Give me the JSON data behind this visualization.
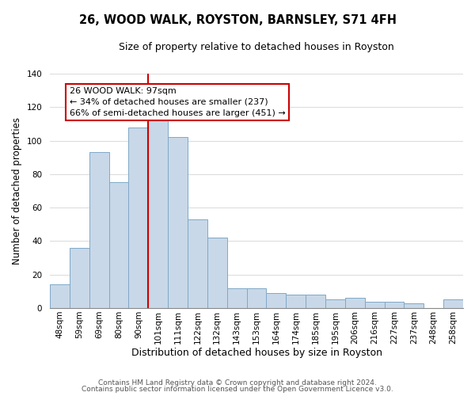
{
  "title": "26, WOOD WALK, ROYSTON, BARNSLEY, S71 4FH",
  "subtitle": "Size of property relative to detached houses in Royston",
  "xlabel": "Distribution of detached houses by size in Royston",
  "ylabel": "Number of detached properties",
  "bar_labels": [
    "48sqm",
    "59sqm",
    "69sqm",
    "80sqm",
    "90sqm",
    "101sqm",
    "111sqm",
    "122sqm",
    "132sqm",
    "143sqm",
    "153sqm",
    "164sqm",
    "174sqm",
    "185sqm",
    "195sqm",
    "206sqm",
    "216sqm",
    "227sqm",
    "237sqm",
    "248sqm",
    "258sqm"
  ],
  "bar_values": [
    14,
    36,
    93,
    75,
    108,
    112,
    102,
    53,
    42,
    12,
    12,
    9,
    8,
    8,
    5,
    6,
    4,
    4,
    3,
    0,
    5
  ],
  "bar_color": "#c8d8e8",
  "bar_edge_color": "#7fa8c8",
  "vline_x_index": 4,
  "vline_color": "#cc0000",
  "annotation_line1": "26 WOOD WALK: 97sqm",
  "annotation_line2": "← 34% of detached houses are smaller (237)",
  "annotation_line3": "66% of semi-detached houses are larger (451) →",
  "annotation_box_color": "#ffffff",
  "annotation_box_edge": "#cc0000",
  "ylim": [
    0,
    140
  ],
  "yticks": [
    0,
    20,
    40,
    60,
    80,
    100,
    120,
    140
  ],
  "footer1": "Contains HM Land Registry data © Crown copyright and database right 2024.",
  "footer2": "Contains public sector information licensed under the Open Government Licence v3.0.",
  "background_color": "#ffffff",
  "grid_color": "#dddddd",
  "title_fontsize": 10.5,
  "subtitle_fontsize": 9,
  "ylabel_fontsize": 8.5,
  "xlabel_fontsize": 9,
  "tick_fontsize": 7.5,
  "footer_fontsize": 6.5,
  "annotation_fontsize": 8
}
